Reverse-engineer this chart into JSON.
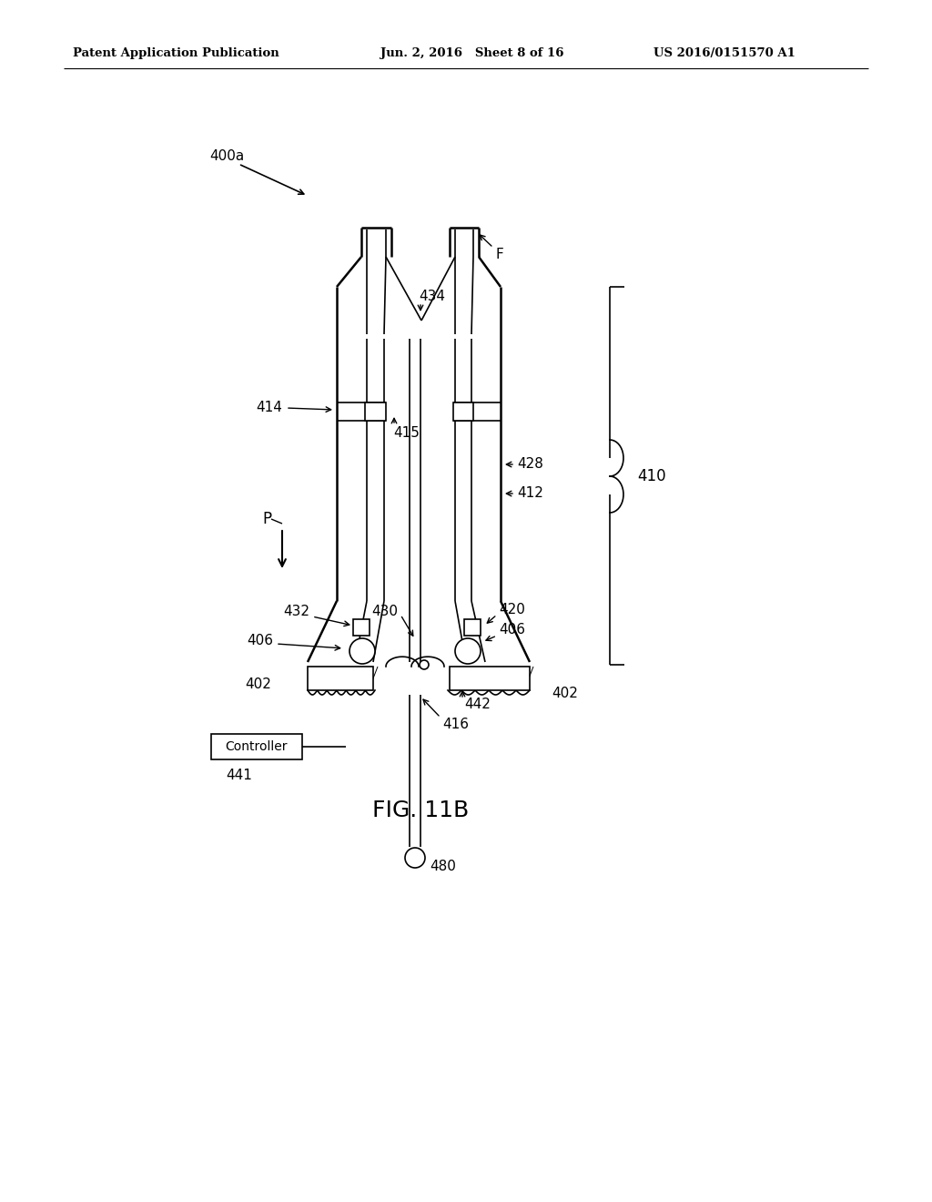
{
  "bg_color": "#ffffff",
  "header_left": "Patent Application Publication",
  "header_center": "Jun. 2, 2016   Sheet 8 of 16",
  "header_right": "US 2016/0151570 A1",
  "figure_label": "FIG. 11B",
  "ref_400a": "400a",
  "label_F": "F",
  "label_434": "434",
  "label_414": "414",
  "label_415": "415",
  "label_428": "428",
  "label_412": "412",
  "label_P": "P",
  "label_432": "432",
  "label_430": "430",
  "label_420": "420",
  "label_406a": "406",
  "label_406b": "406",
  "label_402a": "402",
  "label_402b": "402",
  "label_442": "442",
  "label_416": "416",
  "label_480": "480",
  "label_441": "441",
  "label_controller": "Controller",
  "label_410": "410"
}
